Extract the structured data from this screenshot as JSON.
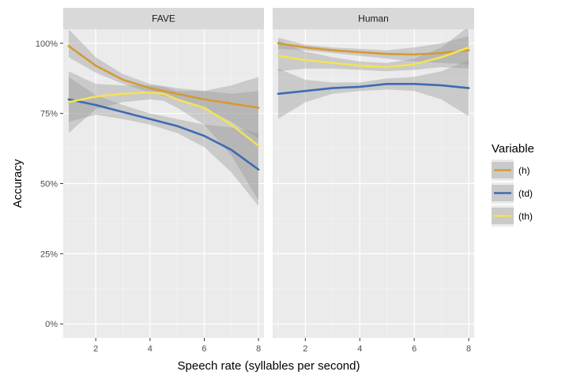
{
  "chart_data": {
    "type": "line",
    "xlabel": "Speech rate (syllables per second)",
    "ylabel": "Accuracy",
    "xlim": [
      0.8,
      8.2
    ],
    "ylim": [
      -0.05,
      1.05
    ],
    "x_ticks": [
      2,
      4,
      6,
      8
    ],
    "x_tick_labels": [
      "2",
      "4",
      "6",
      "8"
    ],
    "y_ticks": [
      0,
      0.25,
      0.5,
      0.75,
      1.0
    ],
    "y_tick_labels": [
      "0%",
      "25%",
      "50%",
      "75%",
      "100%"
    ],
    "grid": true,
    "legend": {
      "title": "Variable",
      "position": "right",
      "entries": [
        {
          "label": "(h)",
          "color": "#d49a34"
        },
        {
          "label": "(td)",
          "color": "#3e6bb0"
        },
        {
          "label": "(th)",
          "color": "#f0e35a"
        }
      ]
    },
    "panels": [
      {
        "strip": "FAVE",
        "x_range": [
          1,
          8
        ],
        "series": [
          {
            "name": "(h)",
            "x": [
              1,
              2,
              3,
              4,
              5,
              6,
              7,
              8
            ],
            "y": [
              0.99,
              0.92,
              0.87,
              0.84,
              0.82,
              0.8,
              0.785,
              0.77
            ],
            "lower": [
              0.95,
              0.895,
              0.855,
              0.825,
              0.8,
              0.77,
              0.72,
              0.66
            ],
            "upper": [
              1.05,
              0.95,
              0.89,
              0.855,
              0.84,
              0.83,
              0.85,
              0.88
            ]
          },
          {
            "name": "(td)",
            "x": [
              1,
              2,
              3,
              4,
              5,
              6,
              7,
              8
            ],
            "y": [
              0.8,
              0.78,
              0.755,
              0.73,
              0.705,
              0.67,
              0.62,
              0.55
            ],
            "lower": [
              0.72,
              0.745,
              0.73,
              0.71,
              0.68,
              0.63,
              0.54,
              0.42
            ],
            "upper": [
              0.88,
              0.815,
              0.78,
              0.75,
              0.73,
              0.71,
              0.7,
              0.68
            ]
          },
          {
            "name": "(th)",
            "x": [
              1,
              2,
              3,
              4,
              4.5,
              5,
              6,
              7,
              8
            ],
            "y": [
              0.79,
              0.81,
              0.82,
              0.825,
              0.82,
              0.8,
              0.77,
              0.71,
              0.635
            ],
            "lower": [
              0.68,
              0.765,
              0.79,
              0.8,
              0.795,
              0.77,
              0.71,
              0.6,
              0.44
            ],
            "upper": [
              0.9,
              0.855,
              0.85,
              0.85,
              0.845,
              0.83,
              0.83,
              0.82,
              0.83
            ]
          }
        ]
      },
      {
        "strip": "Human",
        "x_range": [
          1,
          8
        ],
        "series": [
          {
            "name": "(h)",
            "x": [
              1,
              2,
              3,
              4,
              5,
              6,
              7,
              8
            ],
            "y": [
              1.0,
              0.985,
              0.975,
              0.968,
              0.962,
              0.96,
              0.965,
              0.975
            ],
            "lower": [
              0.98,
              0.975,
              0.965,
              0.955,
              0.945,
              0.935,
              0.93,
              0.925
            ],
            "upper": [
              1.02,
              0.995,
              0.985,
              0.98,
              0.975,
              0.985,
              1.0,
              1.025
            ]
          },
          {
            "name": "(td)",
            "x": [
              1,
              2,
              3,
              4,
              5,
              6,
              7,
              8
            ],
            "y": [
              0.82,
              0.83,
              0.84,
              0.845,
              0.855,
              0.855,
              0.85,
              0.84
            ],
            "lower": [
              0.73,
              0.79,
              0.82,
              0.83,
              0.835,
              0.83,
              0.8,
              0.74
            ],
            "upper": [
              0.91,
              0.87,
              0.86,
              0.86,
              0.875,
              0.88,
              0.9,
              0.94
            ]
          },
          {
            "name": "(th)",
            "x": [
              1,
              2,
              3,
              4,
              5,
              6,
              7,
              8
            ],
            "y": [
              0.955,
              0.94,
              0.93,
              0.92,
              0.915,
              0.925,
              0.95,
              0.985
            ],
            "lower": [
              0.9,
              0.91,
              0.91,
              0.905,
              0.9,
              0.905,
              0.915,
              0.91
            ],
            "upper": [
              1.01,
              0.97,
              0.95,
              0.935,
              0.93,
              0.945,
              0.985,
              1.06
            ]
          }
        ]
      }
    ]
  }
}
